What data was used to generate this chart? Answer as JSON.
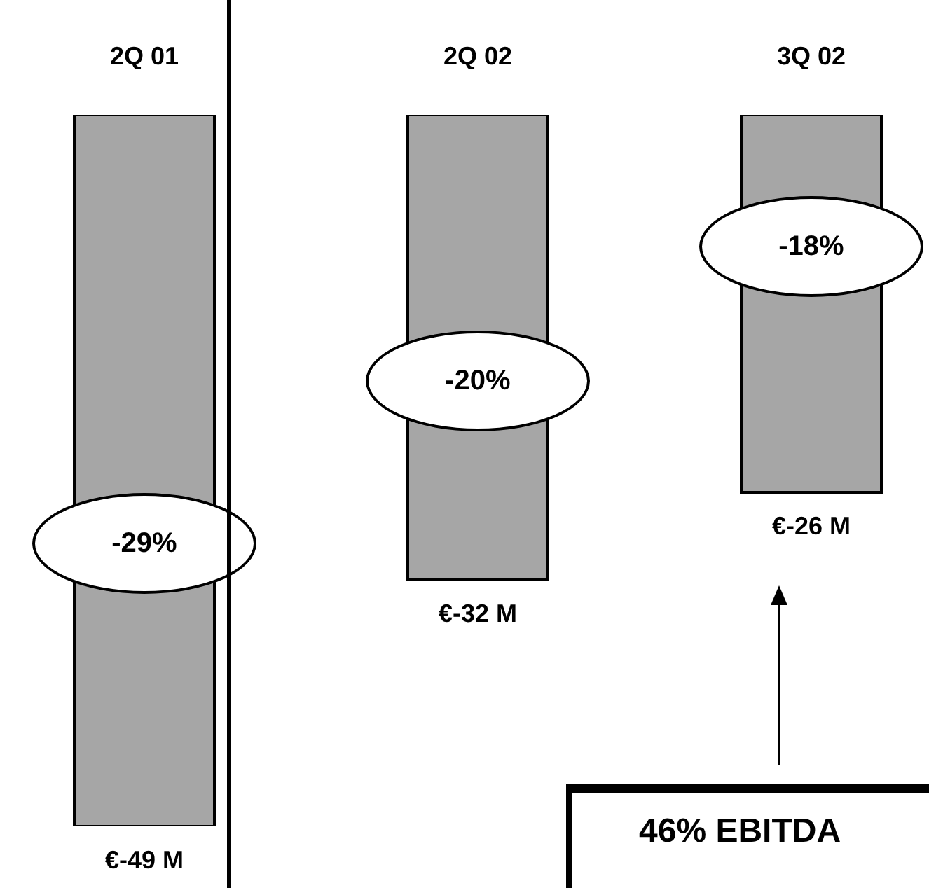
{
  "chart_data": {
    "type": "bar",
    "categories": [
      "2Q 01",
      "2Q 02",
      "3Q 02"
    ],
    "values": [
      -49,
      -32,
      -26
    ],
    "color": "#a6a6a6",
    "value_labels": [
      "€-49 M",
      "€-32 M",
      "€-26 M"
    ],
    "annotations": [
      "-29%",
      "-20%",
      "-18%",
      "46% EBITDA"
    ],
    "grid": false,
    "legend": false
  }
}
